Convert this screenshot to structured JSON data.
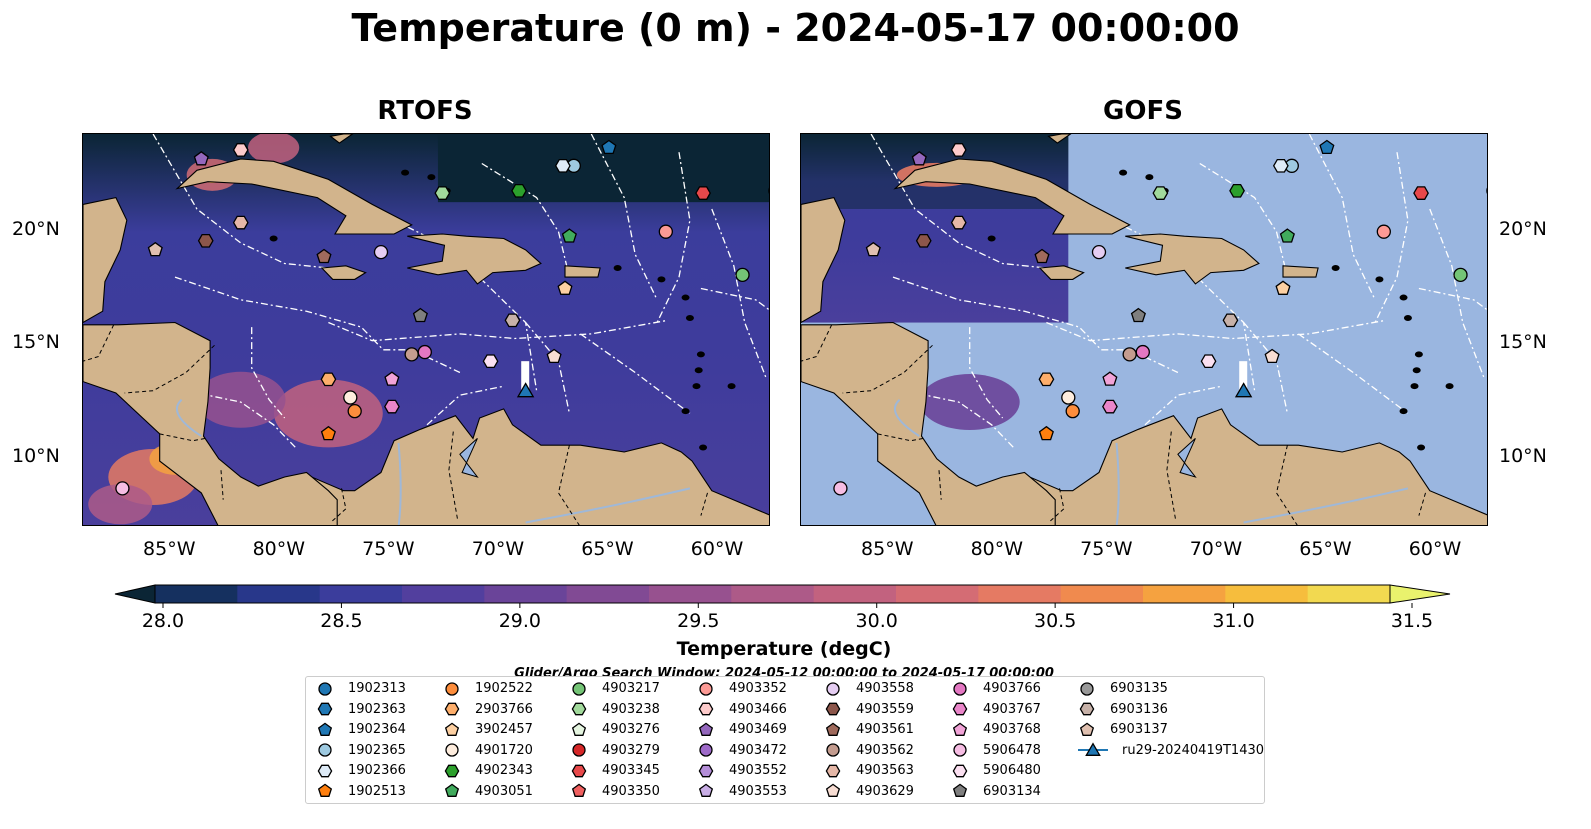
{
  "title": "Temperature (0 m) - 2024-05-17 00:00:00",
  "panels": [
    {
      "title": "RTOFS",
      "style": "model"
    },
    {
      "title": "GOFS",
      "style": "partial"
    }
  ],
  "lon_ticks": [
    "85°W",
    "80°W",
    "75°W",
    "70°W",
    "65°W",
    "60°W"
  ],
  "lat_ticks": [
    "20°N",
    "15°N",
    "10°N"
  ],
  "colorbar": {
    "label": "Temperature (degC)",
    "ticks": [
      "28.0",
      "28.5",
      "29.0",
      "29.5",
      "30.0",
      "30.5",
      "31.0",
      "31.5"
    ],
    "colors": [
      "#0b2535",
      "#15305f",
      "#28378a",
      "#3b3d9c",
      "#523f9e",
      "#6a4499",
      "#814a94",
      "#97518f",
      "#ad5a88",
      "#c2627f",
      "#d46c74",
      "#e57a63",
      "#f08a4e",
      "#f5a240",
      "#f6bd3d",
      "#f2d950",
      "#e9f26d"
    ]
  },
  "search_window": "Glider/Argo Search Window: 2024-05-12 00:00:00 to 2024-05-17 00:00:00",
  "legend": [
    {
      "label": "1902313",
      "marker": "circle",
      "color": "#1f77b4"
    },
    {
      "label": "1902363",
      "marker": "hexagon",
      "color": "#1f77b4"
    },
    {
      "label": "1902364",
      "marker": "pentagon",
      "color": "#1f77b4"
    },
    {
      "label": "1902365",
      "marker": "circle",
      "color": "#9ecae1"
    },
    {
      "label": "1902366",
      "marker": "hexagon",
      "color": "#deebf7"
    },
    {
      "label": "1902513",
      "marker": "pentagon",
      "color": "#ff7f0e"
    },
    {
      "label": "1902522",
      "marker": "circle",
      "color": "#fd8d3c"
    },
    {
      "label": "2903766",
      "marker": "hexagon",
      "color": "#fdae6b"
    },
    {
      "label": "3902457",
      "marker": "pentagon",
      "color": "#fdd0a2"
    },
    {
      "label": "4901720",
      "marker": "circle",
      "color": "#feedde"
    },
    {
      "label": "4902343",
      "marker": "hexagon",
      "color": "#2ca02c"
    },
    {
      "label": "4903051",
      "marker": "pentagon",
      "color": "#41ab5d"
    },
    {
      "label": "4903217",
      "marker": "circle",
      "color": "#74c476"
    },
    {
      "label": "4903238",
      "marker": "hexagon",
      "color": "#a1d99b"
    },
    {
      "label": "4903276",
      "marker": "pentagon",
      "color": "#e5f5e0"
    },
    {
      "label": "4903279",
      "marker": "circle",
      "color": "#d62728"
    },
    {
      "label": "4903345",
      "marker": "hexagon",
      "color": "#e7484a"
    },
    {
      "label": "4903350",
      "marker": "pentagon",
      "color": "#f06060"
    },
    {
      "label": "4903352",
      "marker": "circle",
      "color": "#fc9a95"
    },
    {
      "label": "4903466",
      "marker": "hexagon",
      "color": "#fdcbcb"
    },
    {
      "label": "4903469",
      "marker": "pentagon",
      "color": "#9467bd"
    },
    {
      "label": "4903472",
      "marker": "circle",
      "color": "#9e6ac9"
    },
    {
      "label": "4903552",
      "marker": "hexagon",
      "color": "#b48ed8"
    },
    {
      "label": "4903553",
      "marker": "pentagon",
      "color": "#c9aee6"
    },
    {
      "label": "4903558",
      "marker": "circle",
      "color": "#e5cdf2"
    },
    {
      "label": "4903559",
      "marker": "hexagon",
      "color": "#8c564b"
    },
    {
      "label": "4903561",
      "marker": "pentagon",
      "color": "#a06a5c"
    },
    {
      "label": "4903562",
      "marker": "circle",
      "color": "#c49c8f"
    },
    {
      "label": "4903563",
      "marker": "hexagon",
      "color": "#e5b7a7"
    },
    {
      "label": "4903629",
      "marker": "pentagon",
      "color": "#f8ddd3"
    },
    {
      "label": "4903766",
      "marker": "circle",
      "color": "#e377c2"
    },
    {
      "label": "4903767",
      "marker": "hexagon",
      "color": "#e985c9"
    },
    {
      "label": "4903768",
      "marker": "pentagon",
      "color": "#f1a3d7"
    },
    {
      "label": "5906478",
      "marker": "circle",
      "color": "#f6bde3"
    },
    {
      "label": "5906480",
      "marker": "hexagon",
      "color": "#fbe0f1"
    },
    {
      "label": "6903134",
      "marker": "pentagon",
      "color": "#7f7f7f"
    },
    {
      "label": "6903135",
      "marker": "circle",
      "color": "#999999"
    },
    {
      "label": "6903136",
      "marker": "hexagon",
      "color": "#c7b1a8"
    },
    {
      "label": "6903137",
      "marker": "pentagon",
      "color": "#e0c0b0"
    },
    {
      "label": "ru29-20240419T1430",
      "marker": "triangle",
      "color": "#1f77b4"
    }
  ],
  "floats": [
    {
      "id": "1902313",
      "lon": -57.6,
      "lat": 21.8
    },
    {
      "id": "1902364",
      "lon": -65.2,
      "lat": 23.7
    },
    {
      "id": "1902365",
      "lon": -66.8,
      "lat": 22.9
    },
    {
      "id": "1902366",
      "lon": -67.3,
      "lat": 22.9
    },
    {
      "id": "1902513",
      "lon": -78.0,
      "lat": 11.1
    },
    {
      "id": "1902522",
      "lon": -76.8,
      "lat": 12.1
    },
    {
      "id": "2903766",
      "lon": -78.0,
      "lat": 13.5
    },
    {
      "id": "3902457",
      "lon": -67.2,
      "lat": 17.5
    },
    {
      "id": "4901720",
      "lon": -77.0,
      "lat": 12.7
    },
    {
      "id": "4902343",
      "lon": -69.3,
      "lat": 21.8
    },
    {
      "id": "4903051",
      "lon": -67.0,
      "lat": 19.8
    },
    {
      "id": "4903217",
      "lon": -59.1,
      "lat": 18.1
    },
    {
      "id": "4903238",
      "lon": -72.8,
      "lat": 21.7
    },
    {
      "id": "4903345",
      "lon": -60.9,
      "lat": 21.7
    },
    {
      "id": "4903352",
      "lon": -62.6,
      "lat": 20.0
    },
    {
      "id": "4903466",
      "lon": -82.0,
      "lat": 23.6
    },
    {
      "id": "4903469",
      "lon": -83.8,
      "lat": 23.2
    },
    {
      "id": "4903559",
      "lon": -83.6,
      "lat": 19.6
    },
    {
      "id": "4903561",
      "lon": -78.2,
      "lat": 18.9
    },
    {
      "id": "4903562",
      "lon": -74.2,
      "lat": 14.6
    },
    {
      "id": "4903563",
      "lon": -82.0,
      "lat": 20.4
    },
    {
      "id": "4903558",
      "lon": -75.6,
      "lat": 19.1
    },
    {
      "id": "4903629",
      "lon": -67.7,
      "lat": 14.5
    },
    {
      "id": "4903766",
      "lon": -73.6,
      "lat": 14.7
    },
    {
      "id": "4903767",
      "lon": -75.1,
      "lat": 12.3
    },
    {
      "id": "4903768",
      "lon": -75.1,
      "lat": 13.5
    },
    {
      "id": "5906478",
      "lon": -87.4,
      "lat": 8.7
    },
    {
      "id": "5906480",
      "lon": -70.6,
      "lat": 14.3
    },
    {
      "id": "6903134",
      "lon": -73.8,
      "lat": 16.3
    },
    {
      "id": "6903136",
      "lon": -69.6,
      "lat": 16.1
    },
    {
      "id": "6903137",
      "lon": -85.9,
      "lat": 19.2
    }
  ],
  "glider": {
    "id": "ru29-20240419T1430",
    "lon": -69.0,
    "lat": 13.0
  }
}
